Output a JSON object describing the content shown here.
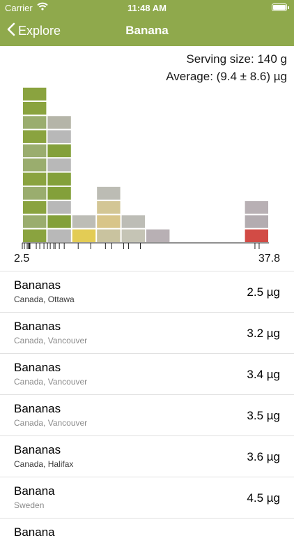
{
  "status_bar": {
    "carrier": "Carrier",
    "time": "11:48 AM",
    "battery_level": 1.0
  },
  "nav": {
    "back_label": "Explore",
    "title": "Banana"
  },
  "summary": {
    "serving": "Serving size: 140 g",
    "average": "Average: (9.4 ± 8.6) µg"
  },
  "chart_data": {
    "type": "bar",
    "xlim": [
      2.5,
      37.8
    ],
    "tick_labels": [
      "2.5",
      "37.8"
    ],
    "categories": [
      "2.5–6.0",
      "6.0–9.5",
      "9.5–13.1",
      "13.1–16.6",
      "16.6–20.2",
      "20.2–23.7",
      "23.7–27.2",
      "27.2–30.8",
      "30.8–34.3",
      "34.3–37.8"
    ],
    "values": [
      11,
      9,
      2,
      4,
      2,
      1,
      0,
      0,
      0,
      3
    ],
    "bin_colors": [
      [
        "#8aa33f",
        "#9aad6e",
        "#8aa33f",
        "#9aad6e",
        "#8aa33f",
        "#9aad6e",
        "#9aad6e",
        "#8aa33f",
        "#9aad6e",
        "#8aa33f",
        "#8aa33f"
      ],
      [
        "#b8b8b8",
        "#83a03a",
        "#b8b8b8",
        "#83a03a",
        "#83a03a",
        "#b8b8b8",
        "#83a03a",
        "#b8b8b8",
        "#b5b5a8"
      ],
      [
        "#e3cc55",
        "#bdbdb6"
      ],
      [
        "#c9c39f",
        "#d8c589",
        "#d3c695",
        "#bcbcb4"
      ],
      [
        "#c5c4b5",
        "#bdbdb6"
      ],
      [
        "#b8b0b4"
      ],
      [],
      [],
      [],
      [
        "#d24b45",
        "#b3acb0",
        "#b8b0b4"
      ]
    ],
    "rug": [
      2.5,
      2.8,
      3.2,
      3.4,
      3.5,
      3.6,
      4.5,
      5.0,
      5.6,
      6.1,
      6.5,
      7.0,
      7.2,
      7.8,
      8.5,
      10.5,
      12.3,
      14.4,
      15.3,
      17.0,
      17.7,
      19.4,
      35.8,
      36.4
    ]
  },
  "foods": [
    {
      "name": "Bananas",
      "location": "Canada, Ottawa",
      "value": "2.5 µg",
      "loc_style": "dark"
    },
    {
      "name": "Bananas",
      "location": "Canada, Vancouver",
      "value": "3.2 µg",
      "loc_style": "grey"
    },
    {
      "name": "Bananas",
      "location": "Canada, Vancouver",
      "value": "3.4 µg",
      "loc_style": "grey"
    },
    {
      "name": "Bananas",
      "location": "Canada, Vancouver",
      "value": "3.5 µg",
      "loc_style": "grey"
    },
    {
      "name": "Bananas",
      "location": "Canada, Halifax",
      "value": "3.6 µg",
      "loc_style": "dark"
    },
    {
      "name": "Banana",
      "location": "Sweden",
      "value": "4.5 µg",
      "loc_style": "grey"
    },
    {
      "name": "Banana",
      "location": "",
      "value": "",
      "loc_style": "grey"
    }
  ]
}
